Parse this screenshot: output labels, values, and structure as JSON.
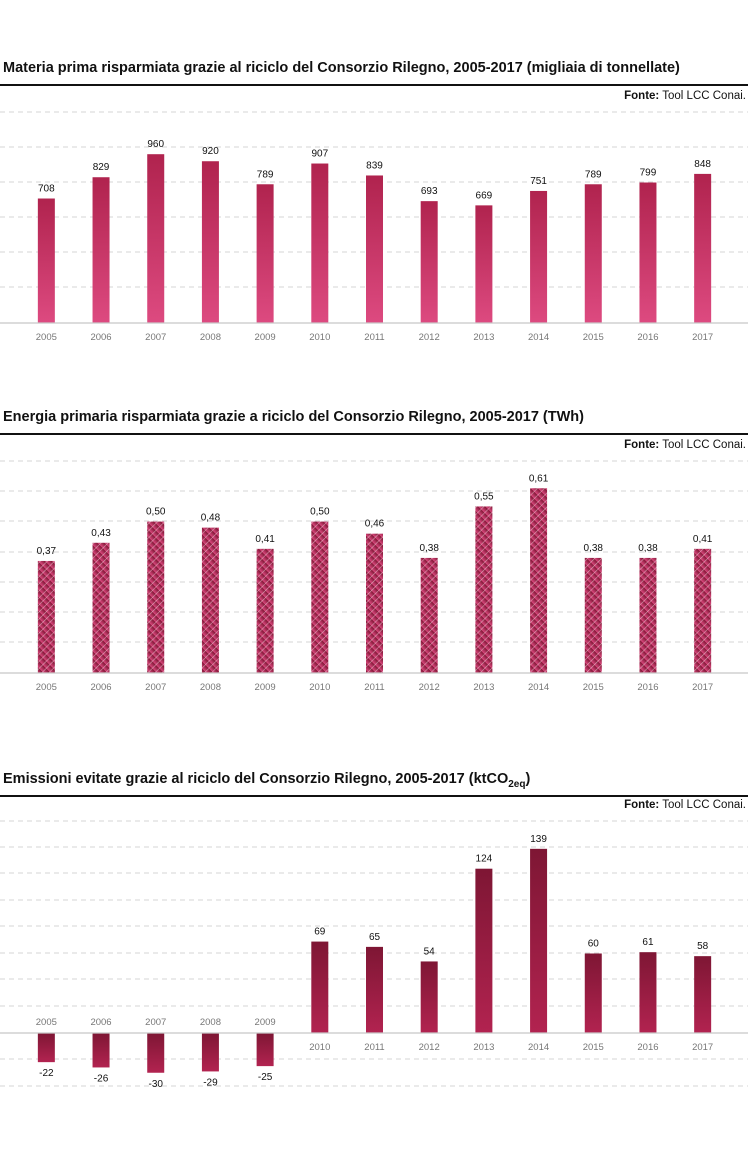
{
  "colors": {
    "bar_top": "#b0234e",
    "bar_bottom": "#dd4a80",
    "dark_top": "#7e1634",
    "dark_bottom": "#b22350",
    "grid": "#d6d6d6"
  },
  "chart_data": [
    {
      "type": "bar",
      "title": "Materia prima risparmiata grazie al riciclo del Consorzio Rilegno, 2005-2017 (migliaia di tonnellate)",
      "source_label": "Fonte:",
      "source_text": " Tool LCC Conai.",
      "categories": [
        "2005",
        "2006",
        "2007",
        "2008",
        "2009",
        "2010",
        "2011",
        "2012",
        "2013",
        "2014",
        "2015",
        "2016",
        "2017"
      ],
      "values": [
        708,
        829,
        960,
        920,
        789,
        907,
        839,
        693,
        669,
        751,
        789,
        799,
        848
      ],
      "labels": [
        "708",
        "829",
        "960",
        "920",
        "789",
        "907",
        "839",
        "693",
        "669",
        "751",
        "789",
        "799",
        "848"
      ],
      "ylim": [
        0,
        1200
      ],
      "grid": true,
      "style": "gradient"
    },
    {
      "type": "bar",
      "title": "Energia primaria risparmiata grazie a riciclo del Consorzio Rilegno, 2005-2017 (TWh)",
      "source_label": "Fonte:",
      "source_text": " Tool LCC Conai.",
      "categories": [
        "2005",
        "2006",
        "2007",
        "2008",
        "2009",
        "2010",
        "2011",
        "2012",
        "2013",
        "2014",
        "2015",
        "2016",
        "2017"
      ],
      "values": [
        0.37,
        0.43,
        0.5,
        0.48,
        0.41,
        0.5,
        0.46,
        0.38,
        0.55,
        0.61,
        0.38,
        0.38,
        0.41
      ],
      "labels": [
        "0,37",
        "0,43",
        "0,50",
        "0,48",
        "0,41",
        "0,50",
        "0,46",
        "0,38",
        "0,55",
        "0,61",
        "0,38",
        "0,38",
        "0,41"
      ],
      "ylim": [
        0,
        0.7
      ],
      "grid": true,
      "style": "hatched"
    },
    {
      "type": "bar",
      "title_main": "Emissioni evitate grazie al riciclo del Consorzio Rilegno, 2005-2017 (ktCO",
      "title_sub": "2eq",
      "title_end": ")",
      "source_label": "Fonte:",
      "source_text": " Tool LCC Conai.",
      "categories": [
        "2005",
        "2006",
        "2007",
        "2008",
        "2009",
        "2010",
        "2011",
        "2012",
        "2013",
        "2014",
        "2015",
        "2016",
        "2017"
      ],
      "values": [
        -22,
        -26,
        -30,
        -29,
        -25,
        69,
        65,
        54,
        124,
        139,
        60,
        61,
        58
      ],
      "labels": [
        "-22",
        "-26",
        "-30",
        "-29",
        "-25",
        "69",
        "65",
        "54",
        "124",
        "139",
        "60",
        "61",
        "58"
      ],
      "ylim": [
        -50,
        160
      ],
      "grid": true,
      "style": "dark"
    }
  ]
}
